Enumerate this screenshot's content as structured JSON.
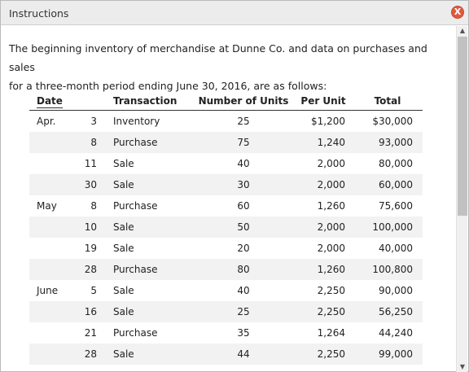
{
  "window": {
    "title": "Instructions",
    "close_label": "X"
  },
  "intro": {
    "line1": "The beginning inventory of merchandise at Dunne Co. and data on purchases and sales",
    "line2": "for a three-month period ending June 30, 2016, are as follows:"
  },
  "table": {
    "headers": {
      "date": "Date",
      "transaction": "Transaction",
      "units": "Number of Units",
      "per_unit": "Per Unit",
      "total": "Total"
    },
    "rows": [
      {
        "month": "Apr.",
        "day": "3",
        "transaction": "Inventory",
        "units": "25",
        "per_unit": "$1,200",
        "total": "$30,000"
      },
      {
        "month": "",
        "day": "8",
        "transaction": "Purchase",
        "units": "75",
        "per_unit": "1,240",
        "total": "93,000"
      },
      {
        "month": "",
        "day": "11",
        "transaction": "Sale",
        "units": "40",
        "per_unit": "2,000",
        "total": "80,000"
      },
      {
        "month": "",
        "day": "30",
        "transaction": "Sale",
        "units": "30",
        "per_unit": "2,000",
        "total": "60,000"
      },
      {
        "month": "May",
        "day": "8",
        "transaction": "Purchase",
        "units": "60",
        "per_unit": "1,260",
        "total": "75,600"
      },
      {
        "month": "",
        "day": "10",
        "transaction": "Sale",
        "units": "50",
        "per_unit": "2,000",
        "total": "100,000"
      },
      {
        "month": "",
        "day": "19",
        "transaction": "Sale",
        "units": "20",
        "per_unit": "2,000",
        "total": "40,000"
      },
      {
        "month": "",
        "day": "28",
        "transaction": "Purchase",
        "units": "80",
        "per_unit": "1,260",
        "total": "100,800"
      },
      {
        "month": "June",
        "day": "5",
        "transaction": "Sale",
        "units": "40",
        "per_unit": "2,250",
        "total": "90,000"
      },
      {
        "month": "",
        "day": "16",
        "transaction": "Sale",
        "units": "25",
        "per_unit": "2,250",
        "total": "56,250"
      },
      {
        "month": "",
        "day": "21",
        "transaction": "Purchase",
        "units": "35",
        "per_unit": "1,264",
        "total": "44,240"
      },
      {
        "month": "",
        "day": "28",
        "transaction": "Sale",
        "units": "44",
        "per_unit": "2,250",
        "total": "99,000"
      }
    ]
  },
  "colors": {
    "close_button": "#e2583e",
    "row_shade": "#f2f2f2",
    "titlebar": "#ececec"
  }
}
